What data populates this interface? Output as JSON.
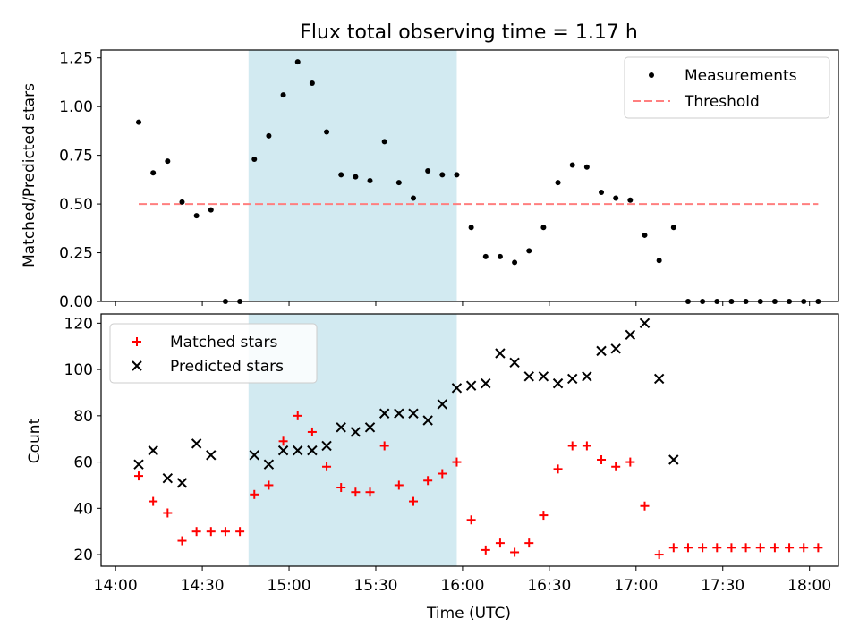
{
  "title": "Flux total observing time = 1.17 h",
  "colors": {
    "shade": "#add8e6",
    "matched": "#ff0000",
    "predicted": "#000000",
    "threshold": "#ff7f7f",
    "measurements": "#000000"
  },
  "chart_data": [
    {
      "type": "scatter",
      "panel": "top",
      "ylabel": "Matched/Predicted stars",
      "xlim": [
        "13:55",
        "18:10"
      ],
      "ylim": [
        0,
        1.29
      ],
      "yticks": [
        0.0,
        0.25,
        0.5,
        0.75,
        1.0,
        1.25
      ],
      "ytick_labels": [
        "0.00",
        "0.25",
        "0.50",
        "0.75",
        "1.00",
        "1.25"
      ],
      "shaded_interval": [
        "14:46",
        "15:58"
      ],
      "legend": {
        "placement": "top-right",
        "entries": [
          "Measurements",
          "Threshold"
        ]
      },
      "threshold": {
        "name": "Threshold",
        "y": 0.5,
        "x_range": [
          "14:08",
          "18:03"
        ],
        "style": "dashed"
      },
      "series": [
        {
          "name": "Measurements",
          "x": [
            "14:08",
            "14:13",
            "14:18",
            "14:23",
            "14:28",
            "14:33",
            "14:38",
            "14:43",
            "14:48",
            "14:53",
            "14:58",
            "15:03",
            "15:08",
            "15:13",
            "15:18",
            "15:23",
            "15:28",
            "15:33",
            "15:38",
            "15:43",
            "15:48",
            "15:53",
            "15:58",
            "16:03",
            "16:08",
            "16:13",
            "16:18",
            "16:23",
            "16:28",
            "16:33",
            "16:38",
            "16:43",
            "16:48",
            "16:53",
            "16:58",
            "17:03",
            "17:08",
            "17:13",
            "17:18",
            "17:23",
            "17:28",
            "17:33",
            "17:38",
            "17:43",
            "17:48",
            "17:53",
            "17:58",
            "18:03"
          ],
          "y": [
            0.92,
            0.66,
            0.72,
            0.51,
            0.44,
            0.47,
            0.0,
            0.0,
            0.73,
            0.85,
            1.06,
            1.23,
            1.12,
            0.87,
            0.65,
            0.64,
            0.62,
            0.82,
            0.61,
            0.53,
            0.67,
            0.65,
            0.65,
            0.38,
            0.23,
            0.23,
            0.2,
            0.26,
            0.38,
            0.61,
            0.7,
            0.69,
            0.56,
            0.53,
            0.52,
            0.34,
            0.21,
            0.38,
            0.0,
            0.0,
            0.0,
            0.0,
            0.0,
            0.0,
            0.0,
            0.0,
            0.0,
            0.0
          ]
        }
      ]
    },
    {
      "type": "scatter",
      "panel": "bottom",
      "xlabel": "Time (UTC)",
      "ylabel": "Count",
      "xlim": [
        "13:55",
        "18:10"
      ],
      "ylim": [
        15,
        124
      ],
      "yticks": [
        20,
        40,
        60,
        80,
        100,
        120
      ],
      "ytick_labels": [
        "20",
        "40",
        "60",
        "80",
        "100",
        "120"
      ],
      "xticks": [
        "14:00",
        "14:30",
        "15:00",
        "15:30",
        "16:00",
        "16:30",
        "17:00",
        "17:30",
        "18:00"
      ],
      "xtick_labels": [
        "14:00",
        "14:30",
        "15:00",
        "15:30",
        "16:00",
        "16:30",
        "17:00",
        "17:30",
        "18:00"
      ],
      "shaded_interval": [
        "14:46",
        "15:58"
      ],
      "legend": {
        "placement": "top-left",
        "entries": [
          "Matched stars",
          "Predicted stars"
        ]
      },
      "series": [
        {
          "name": "Matched stars",
          "marker": "plus",
          "x": [
            "14:08",
            "14:13",
            "14:18",
            "14:23",
            "14:28",
            "14:33",
            "14:38",
            "14:43",
            "14:48",
            "14:53",
            "14:58",
            "15:03",
            "15:08",
            "15:13",
            "15:18",
            "15:23",
            "15:28",
            "15:33",
            "15:38",
            "15:43",
            "15:48",
            "15:53",
            "15:58",
            "16:03",
            "16:08",
            "16:13",
            "16:18",
            "16:23",
            "16:28",
            "16:33",
            "16:38",
            "16:43",
            "16:48",
            "16:53",
            "16:58",
            "17:03",
            "17:08",
            "17:13",
            "17:18",
            "17:23",
            "17:28",
            "17:33",
            "17:38",
            "17:43",
            "17:48",
            "17:53",
            "17:58",
            "18:03"
          ],
          "y": [
            54,
            43,
            38,
            26,
            30,
            30,
            30,
            30,
            46,
            50,
            69,
            80,
            73,
            58,
            49,
            47,
            47,
            67,
            50,
            43,
            52,
            55,
            60,
            35,
            22,
            25,
            21,
            25,
            37,
            57,
            67,
            67,
            61,
            58,
            60,
            41,
            20,
            23,
            23,
            23,
            23,
            23,
            23,
            23,
            23,
            23,
            23,
            23
          ]
        },
        {
          "name": "Predicted stars",
          "marker": "x",
          "x": [
            "14:08",
            "14:13",
            "14:18",
            "14:23",
            "14:28",
            "14:33",
            "14:48",
            "14:53",
            "14:58",
            "15:03",
            "15:08",
            "15:13",
            "15:18",
            "15:23",
            "15:28",
            "15:33",
            "15:38",
            "15:43",
            "15:48",
            "15:53",
            "15:58",
            "16:03",
            "16:08",
            "16:13",
            "16:18",
            "16:23",
            "16:28",
            "16:33",
            "16:38",
            "16:43",
            "16:48",
            "16:53",
            "16:58",
            "17:03",
            "17:08",
            "17:13"
          ],
          "y": [
            59,
            65,
            53,
            51,
            68,
            63,
            63,
            59,
            65,
            65,
            65,
            67,
            75,
            73,
            75,
            81,
            81,
            81,
            78,
            85,
            92,
            93,
            94,
            107,
            103,
            97,
            97,
            94,
            96,
            97,
            108,
            109,
            115,
            120,
            96,
            61
          ]
        }
      ]
    }
  ]
}
